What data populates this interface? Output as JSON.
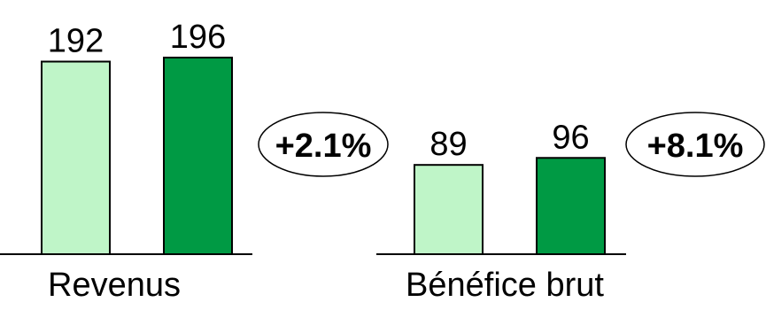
{
  "chart_data": [
    {
      "type": "bar",
      "categories": [
        "Revenus"
      ],
      "series": [
        {
          "values": [
            192
          ]
        },
        {
          "values": [
            196
          ]
        }
      ],
      "value_labels": [
        "192",
        "196"
      ],
      "change_label": "+2.1%",
      "colors": [
        "#bff5c8",
        "#009a44"
      ]
    },
    {
      "type": "bar",
      "categories": [
        "Bénéfice brut"
      ],
      "series": [
        {
          "values": [
            89
          ]
        },
        {
          "values": [
            96
          ]
        }
      ],
      "value_labels": [
        "89",
        "96"
      ],
      "change_label": "+8.1%",
      "colors": [
        "#bff5c8",
        "#009a44"
      ]
    }
  ]
}
